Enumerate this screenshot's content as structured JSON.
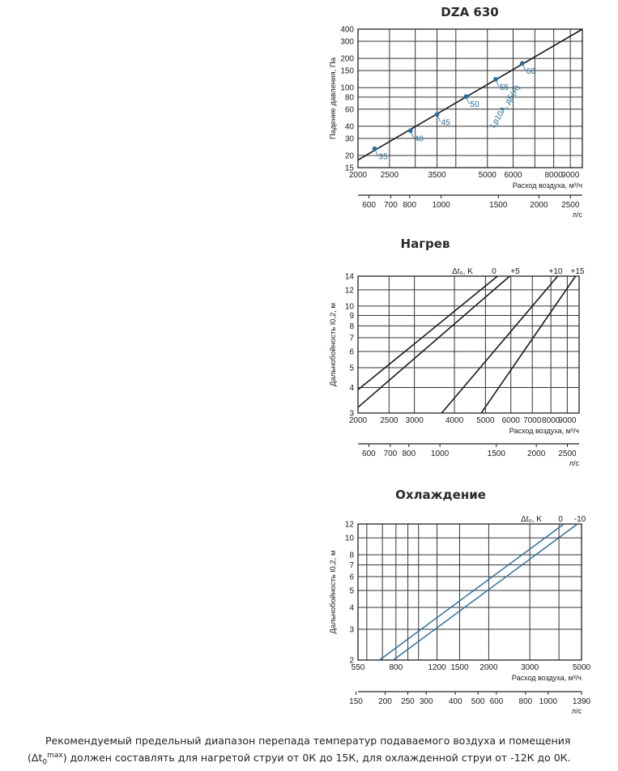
{
  "colors": {
    "axis": "#222222",
    "grid": "#333333",
    "line_dark": "#1a1a1a",
    "blue": "#1e6fa8",
    "text": "#1a1a1a"
  },
  "note": {
    "prefix": "Рекомендуемый предельный диапазон перепада температур подаваемого воздуха и помещения (",
    "delta": "Δt",
    "sub": "0",
    "sup": "max",
    "suffix": ") должен составлять для нагретой струи от 0К до 15К, для охлажденной струи от -12К до 0К."
  },
  "chart_data": [
    {
      "type": "line",
      "title": "DZA 630",
      "ylabel": "Падение давления, Па",
      "xlabel": "Расход воздуха, м³/ч",
      "x2label": "л/с",
      "xscale": "log",
      "yscale": "log",
      "xlim": [
        2000,
        9800
      ],
      "ylim": [
        15,
        400
      ],
      "x_ticks": [
        2000,
        2500,
        3500,
        5000,
        6000,
        8000,
        9000
      ],
      "x_tick_labels": [
        "2000",
        "2500",
        "3500",
        "5000",
        "6000",
        "8000",
        "9000"
      ],
      "x_grid": [
        2000,
        2500,
        3000,
        3500,
        4000,
        5000,
        6000,
        7000,
        8000,
        9000
      ],
      "y_ticks": [
        15,
        20,
        30,
        40,
        60,
        80,
        100,
        150,
        200,
        300,
        400
      ],
      "y_tick_labels": [
        "15",
        "20",
        "30",
        "40",
        "60",
        "80",
        "100",
        "150",
        "200",
        "300",
        "400"
      ],
      "x2_ticks": [
        600,
        700,
        800,
        1000,
        1500,
        2000,
        2500
      ],
      "x2_tick_labels": [
        "600",
        "700",
        "800",
        "1000",
        "1500",
        "2000",
        "2500"
      ],
      "series": [
        {
          "name": "",
          "x": [
            2000,
            9800
          ],
          "y": [
            18,
            400
          ]
        }
      ],
      "markers": [
        {
          "x": 2250,
          "y": 23.5,
          "label": "35"
        },
        {
          "x": 2900,
          "y": 36,
          "label": "40"
        },
        {
          "x": 3500,
          "y": 53,
          "label": "45"
        },
        {
          "x": 4300,
          "y": 81,
          "label": "50"
        },
        {
          "x": 5300,
          "y": 122,
          "label": "55"
        },
        {
          "x": 6400,
          "y": 178,
          "label": "60"
        }
      ],
      "annotation": "Lp10A, дБ(A)"
    },
    {
      "type": "line",
      "title": "Нагрев",
      "ylabel": "Дальнобойность l0,2, м",
      "xlabel": "Расход воздуха, м³/ч",
      "x2label": "л/с",
      "legend_title": "Δt₀, K",
      "xscale": "log",
      "yscale": "log",
      "xlim": [
        2000,
        9800
      ],
      "ylim": [
        3,
        14
      ],
      "x_ticks": [
        2000,
        2500,
        3000,
        4000,
        5000,
        6000,
        7000,
        8000,
        9000
      ],
      "x_tick_labels": [
        "2000",
        "2500",
        "3000",
        "4000",
        "5000",
        "6000",
        "7000",
        "8000",
        "9000"
      ],
      "y_ticks": [
        3,
        4,
        5,
        6,
        7,
        8,
        9,
        10,
        12,
        14
      ],
      "y_tick_labels": [
        "3",
        "4",
        "5",
        "6",
        "7",
        "8",
        "9",
        "10",
        "12",
        "14"
      ],
      "x2_ticks": [
        600,
        700,
        800,
        1000,
        1500,
        2000,
        2500
      ],
      "x2_tick_labels": [
        "600",
        "700",
        "800",
        "1000",
        "1500",
        "2000",
        "2500"
      ],
      "series": [
        {
          "name": "0",
          "x": [
            2000,
            5450
          ],
          "y": [
            3.9,
            14
          ]
        },
        {
          "name": "+5",
          "x": [
            2000,
            5950
          ],
          "y": [
            3.2,
            14
          ]
        },
        {
          "name": "+10",
          "x": [
            3650,
            8400
          ],
          "y": [
            3,
            14
          ]
        },
        {
          "name": "+15",
          "x": [
            4850,
            9550
          ],
          "y": [
            3,
            14
          ]
        }
      ]
    },
    {
      "type": "line",
      "title": "Охлаждение",
      "ylabel": "Дальнобойность l0,2, м",
      "xlabel": "Расход воздуха, м³/ч",
      "x2label": "л/с",
      "legend_title": "Δt₀, K",
      "xscale": "log",
      "yscale": "log",
      "xlim": [
        550,
        5000
      ],
      "ylim": [
        2,
        12
      ],
      "x_ticks": [
        550,
        800,
        1200,
        1500,
        2000,
        3000,
        5000
      ],
      "x_tick_labels": [
        "550",
        "800",
        "1200",
        "1500",
        "2000",
        "3000",
        "5000"
      ],
      "x_grid": [
        550,
        600,
        700,
        800,
        900,
        1000,
        1200,
        1500,
        2000,
        3000,
        4000,
        5000
      ],
      "y_ticks": [
        2,
        3,
        4,
        5,
        6,
        7,
        8,
        10,
        12
      ],
      "y_tick_labels": [
        "2",
        "3",
        "4",
        "5",
        "6",
        "7",
        "8",
        "10",
        "12"
      ],
      "x2_ticks": [
        150,
        200,
        250,
        300,
        400,
        500,
        600,
        800,
        1000,
        1390
      ],
      "x2_tick_labels": [
        "150",
        "200",
        "250",
        "300",
        "400",
        "500",
        "600",
        "800",
        "1000",
        "1390"
      ],
      "series": [
        {
          "name": "0",
          "x": [
            680,
            4200
          ],
          "y": [
            2,
            12
          ]
        },
        {
          "name": "-10",
          "x": [
            780,
            4800
          ],
          "y": [
            2,
            12
          ]
        }
      ]
    }
  ]
}
